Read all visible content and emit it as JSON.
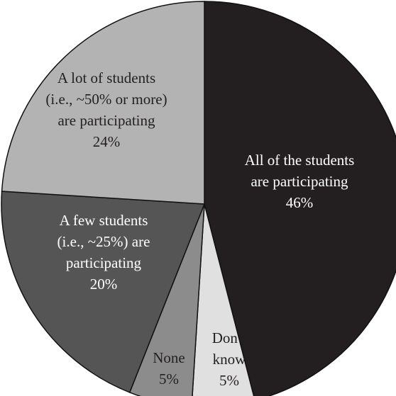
{
  "chart_data": {
    "type": "pie",
    "title": "",
    "slices": [
      {
        "lines": [
          "All of the students",
          "are participating"
        ],
        "value_label": "46%",
        "value": 46,
        "color": "#231f20",
        "text_color": "#ffffff"
      },
      {
        "lines": [
          "Don’t",
          "know"
        ],
        "value_label": "5%",
        "value": 5,
        "color": "#e0e0e0",
        "text_color": "#231f20"
      },
      {
        "lines": [
          "None"
        ],
        "value_label": "5%",
        "value": 5,
        "color": "#8c8c8c",
        "text_color": "#231f20"
      },
      {
        "lines": [
          "A few students",
          "(i.e., ~25%) are",
          "participating"
        ],
        "value_label": "20%",
        "value": 20,
        "color": "#555555",
        "text_color": "#ffffff"
      },
      {
        "lines": [
          "A lot of students",
          "(i.e., ~50% or more)",
          "are participating"
        ],
        "value_label": "24%",
        "value": 24,
        "color": "#b3b3b3",
        "text_color": "#231f20"
      }
    ]
  }
}
